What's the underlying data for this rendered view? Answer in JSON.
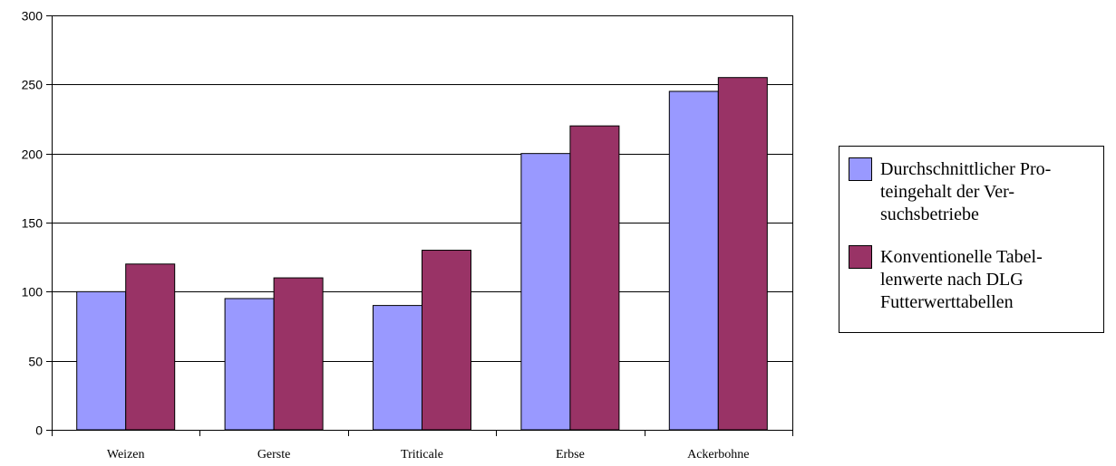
{
  "chart_data": {
    "type": "bar",
    "categories": [
      "Weizen",
      "Gerste",
      "Triticale",
      "Erbse",
      "Ackerbohne"
    ],
    "series": [
      {
        "name": "Durchschnittlicher Proteingehalt der Versuchsbetriebe",
        "legend_lines": [
          "Durchschnittlicher Pro-",
          "teingehalt der Ver-",
          "suchsbetriebe"
        ],
        "color": "#9999ff",
        "values": [
          100,
          95,
          90,
          200,
          245
        ]
      },
      {
        "name": "Konventionelle Tabellenwerte nach DLG Futterwerttabellen",
        "legend_lines": [
          "Konventionelle Tabel-",
          "lenwerte nach DLG",
          "Futterwerttabellen"
        ],
        "color": "#993366",
        "values": [
          120,
          110,
          130,
          220,
          255
        ]
      }
    ],
    "ylim": [
      0,
      300
    ],
    "yticks": [
      0,
      50,
      100,
      150,
      200,
      250,
      300
    ],
    "title": "",
    "xlabel": "",
    "ylabel": "",
    "grid": true,
    "legend_position": "right"
  }
}
